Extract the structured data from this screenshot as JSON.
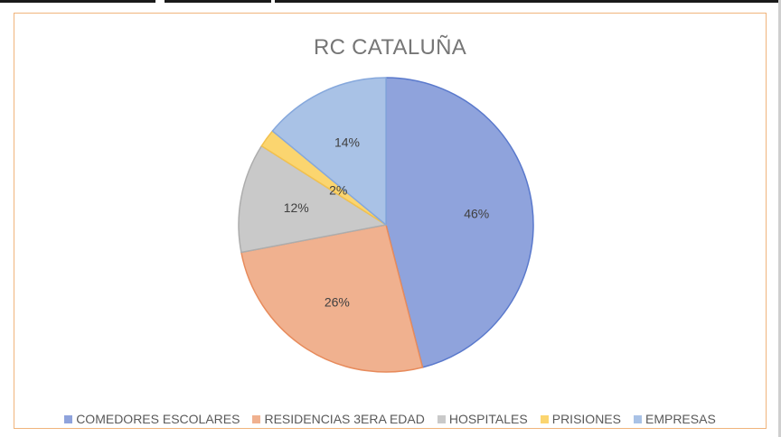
{
  "chart_data": {
    "type": "pie",
    "title": "RC CATALUÑA",
    "categories": [
      "COMEDORES ESCOLARES",
      "RESIDENCIAS 3ERA EDAD",
      "HOSPITALES",
      "PRISIONES",
      "EMPRESAS"
    ],
    "values": [
      46,
      26,
      12,
      2,
      14
    ],
    "labels": [
      "46%",
      "26%",
      "12%",
      "2%",
      "14%"
    ],
    "colors": [
      "#8fa3dc",
      "#f0b18f",
      "#c9c9c9",
      "#fbd56f",
      "#a9c2e6"
    ],
    "edge_colors": [
      "#5a79cc",
      "#e78b5c",
      "#adadad",
      "#f2c14e",
      "#86a8dc"
    ],
    "legend": "bottom"
  }
}
